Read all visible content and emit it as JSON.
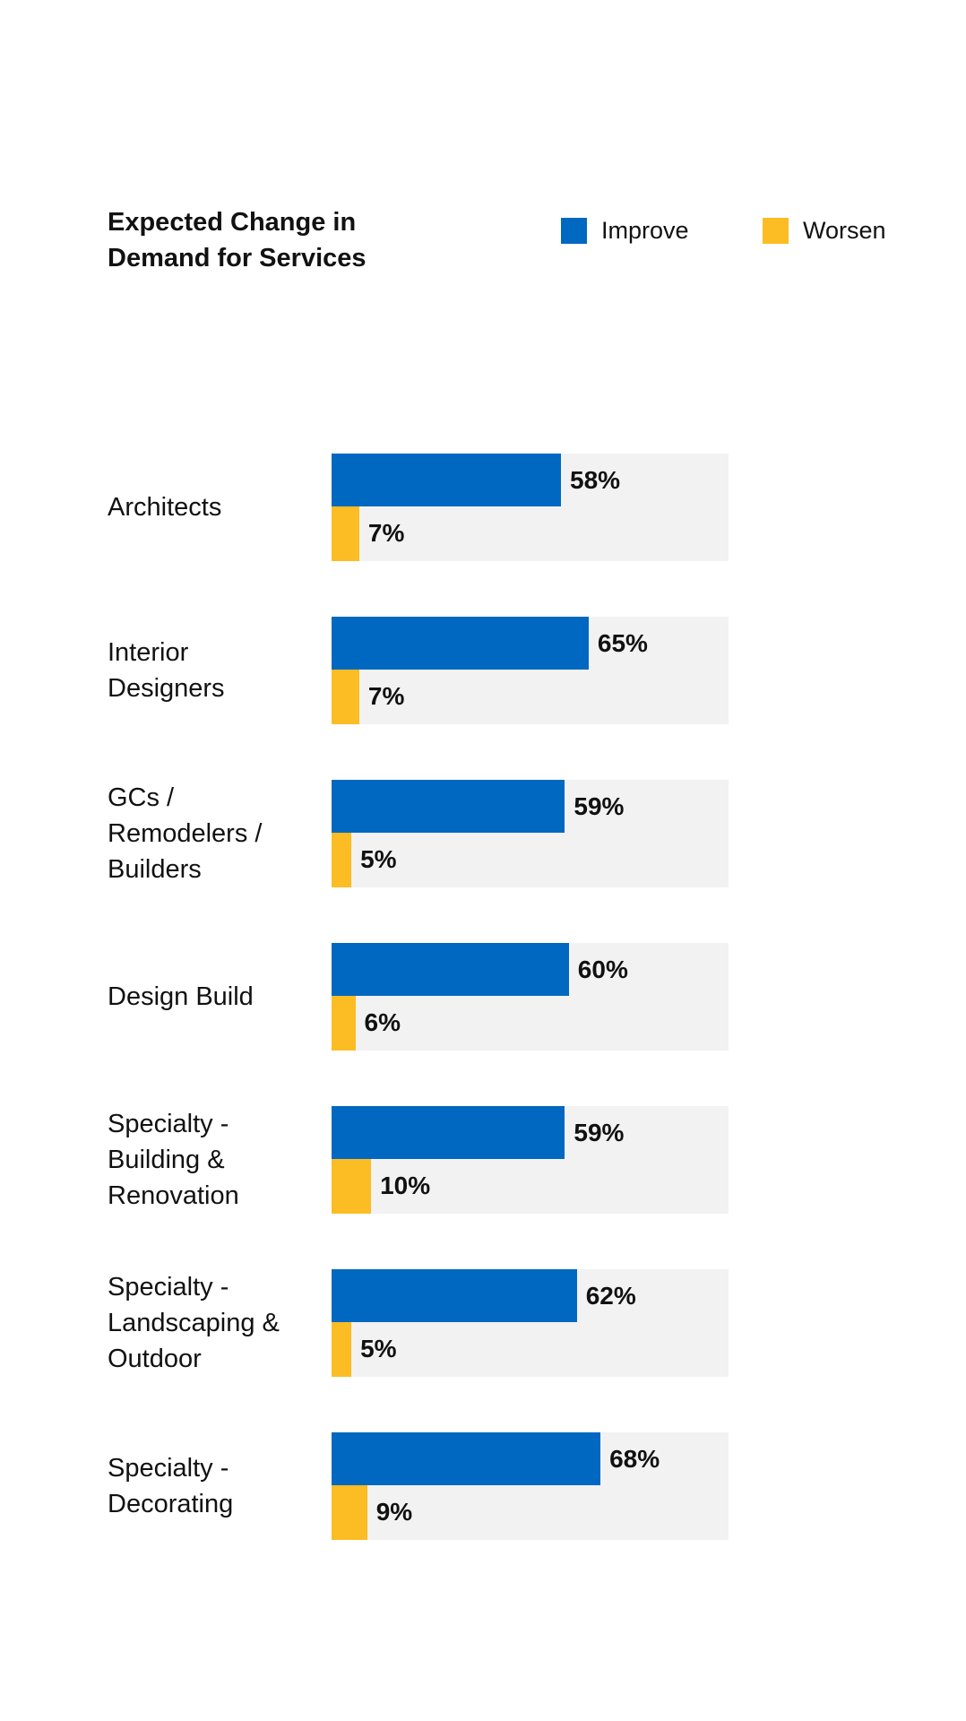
{
  "chart_data": {
    "type": "bar",
    "orientation": "horizontal",
    "title": "Expected Change in\nDemand for Services",
    "categories": [
      "Architects",
      "Interior\nDesigners",
      "GCs /\nRemodelers /\nBuilders",
      "Design Build",
      "Specialty -\nBuilding &\nRenovation",
      "Specialty -\nLandscaping &\nOutdoor",
      "Specialty -\nDecorating"
    ],
    "series": [
      {
        "name": "Improve",
        "color": "#0068c0",
        "values": [
          58,
          65,
          59,
          60,
          59,
          62,
          68
        ],
        "labels": [
          "58%",
          "65%",
          "59%",
          "60%",
          "59%",
          "62%",
          "68%"
        ]
      },
      {
        "name": "Worsen",
        "color": "#fbbd23",
        "values": [
          7,
          7,
          5,
          6,
          10,
          5,
          9
        ],
        "labels": [
          "7%",
          "7%",
          "5%",
          "6%",
          "10%",
          "5%",
          "9%"
        ]
      }
    ],
    "xlim": [
      0,
      100
    ],
    "unit": "%",
    "legend_position": "top-right",
    "track_color": "#f2f2f2",
    "grid": false
  }
}
